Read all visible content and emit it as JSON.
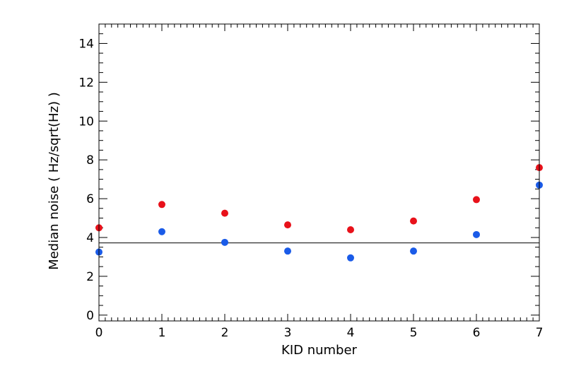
{
  "chart_data": {
    "type": "scatter",
    "title": "",
    "xlabel": "KID number",
    "ylabel": "Median noise ( Hz/sqrt(Hz) )",
    "xlim": [
      0,
      7
    ],
    "ylim": [
      -0.3,
      15
    ],
    "x_ticks": [
      0,
      1,
      2,
      3,
      4,
      5,
      6,
      7
    ],
    "y_ticks": [
      0,
      2,
      4,
      6,
      8,
      10,
      12,
      14
    ],
    "grid": false,
    "legend": "none",
    "series": [
      {
        "color": "#e8111a",
        "x": [
          0,
          1,
          2,
          3,
          4,
          5,
          6,
          7
        ],
        "y": [
          4.5,
          5.7,
          5.25,
          4.65,
          4.4,
          4.85,
          5.95,
          7.6
        ]
      },
      {
        "color": "#1a5be8",
        "x": [
          0,
          1,
          2,
          3,
          4,
          5,
          6,
          7
        ],
        "y": [
          3.25,
          4.3,
          3.75,
          3.3,
          2.95,
          3.3,
          4.15,
          6.7
        ]
      }
    ],
    "reference_line": {
      "y": 3.72,
      "color": "#000000"
    }
  }
}
